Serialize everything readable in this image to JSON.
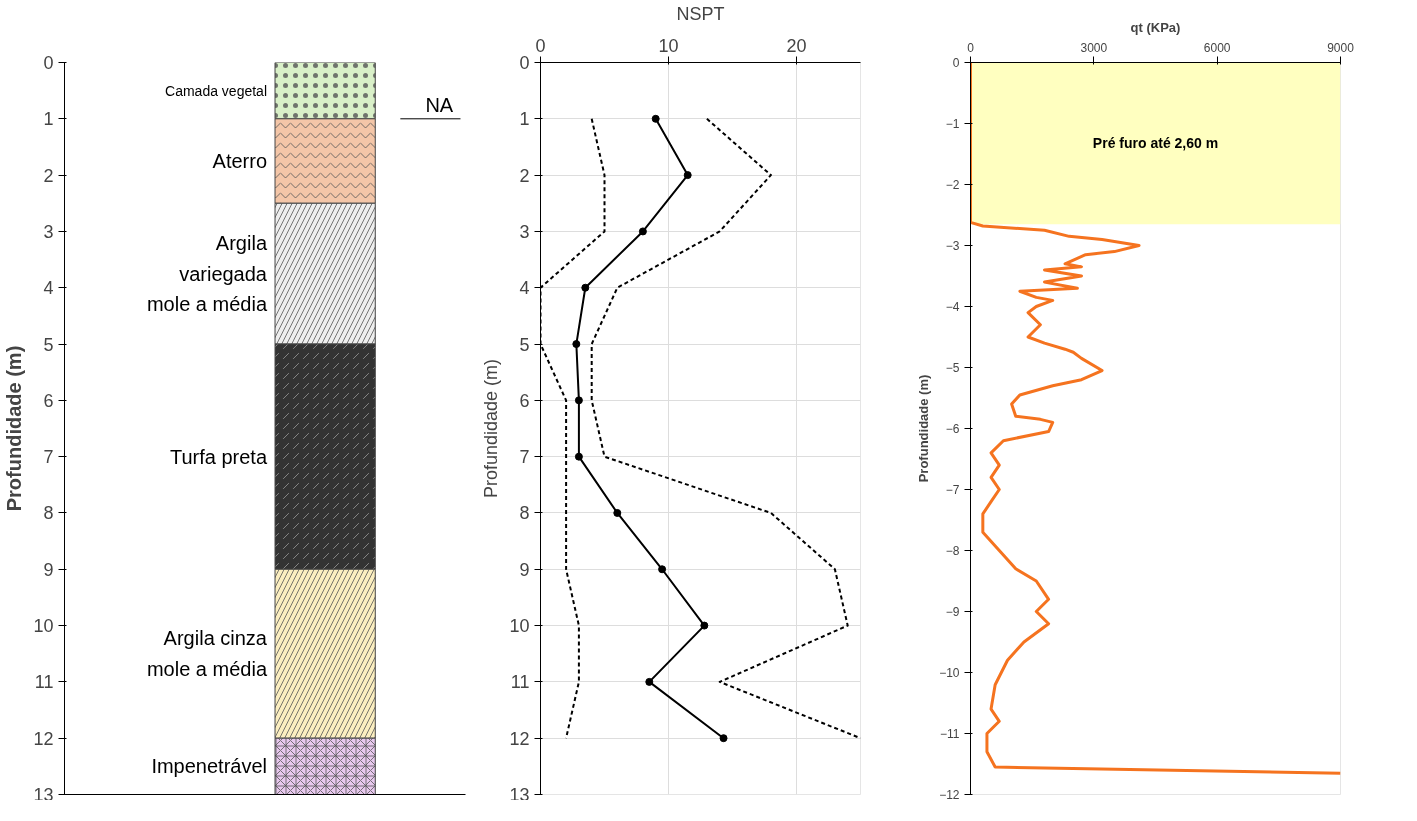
{
  "chart_data": [
    {
      "type": "bar",
      "stacked": true,
      "categories": [
        null
      ],
      "ylabel": "Profundidade (m)",
      "ylim": [
        13,
        0
      ],
      "yticks": [
        0,
        1,
        2,
        3,
        4,
        5,
        6,
        7,
        8,
        9,
        10,
        11,
        12,
        13
      ],
      "series": [
        {
          "name": "Camada vegetal",
          "color": "#d9f0c8",
          "values": [
            1
          ]
        },
        {
          "name": "Aterro",
          "color": "#f4c6a8",
          "values": [
            1.5
          ]
        },
        {
          "name": "Argila variegada mole a média",
          "color": "#eeeeee",
          "values": [
            2.5
          ]
        },
        {
          "name": "Turfa preta",
          "color": "#333333",
          "values": [
            4
          ]
        },
        {
          "name": "Argila cinza mole a média",
          "color": "#fbeec0",
          "values": [
            3
          ]
        },
        {
          "name": "Impenetrável",
          "color": "#e8c8ee",
          "values": [
            1
          ]
        }
      ],
      "ref_lines": [
        {
          "axis": "y",
          "value": 1,
          "label": "NA"
        }
      ]
    },
    {
      "type": "line",
      "xlabel": "NSPT",
      "ylabel": "Profundidade (m)",
      "xlim": [
        0,
        25
      ],
      "xticks": [
        0,
        10,
        20
      ],
      "ylim": [
        13,
        0
      ],
      "yticks": [
        0,
        1,
        2,
        3,
        4,
        5,
        6,
        7,
        8,
        9,
        10,
        11,
        12,
        13
      ],
      "grid": true,
      "series": [
        {
          "color": "#000000",
          "marker": "circle",
          "line_style": "solid",
          "x": [
            9,
            11.5,
            8,
            3.5,
            2.8,
            3,
            3,
            6,
            9.5,
            12.8,
            8.5,
            14.3
          ],
          "values": [
            1,
            2,
            3,
            4,
            5,
            6,
            7,
            8,
            9,
            10,
            11,
            12
          ]
        },
        {
          "color": "#000000",
          "marker": "none",
          "line_style": "dashed",
          "x": [
            4,
            5,
            5,
            0,
            0,
            2,
            2,
            2,
            2,
            3,
            3,
            2
          ],
          "values": [
            1,
            2,
            3,
            4,
            5,
            6,
            7,
            8,
            9,
            10,
            11,
            12
          ]
        },
        {
          "color": "#000000",
          "marker": "none",
          "line_style": "dashed",
          "x": [
            13,
            18,
            14,
            6,
            4,
            4,
            5,
            18,
            23,
            24,
            14,
            25
          ],
          "values": [
            1,
            2,
            3,
            4,
            5,
            6,
            7,
            8,
            9,
            10,
            11,
            12
          ]
        }
      ]
    },
    {
      "type": "line",
      "xlabel": "qt (KPa)",
      "ylabel": "Profundidade (m)",
      "xlim": [
        0,
        9000
      ],
      "xticks": [
        0,
        3000,
        6000,
        9000
      ],
      "ylim": [
        -12,
        0
      ],
      "yticks": [
        0,
        -1,
        -2,
        -3,
        -4,
        -5,
        -6,
        -7,
        -8,
        -9,
        -10,
        -11,
        -12
      ],
      "bands": [
        {
          "axis": "y",
          "from": 0,
          "to": -2.65,
          "label": "Pré furo até 2,60 m",
          "color": "#ffffc0"
        }
      ],
      "series": [
        {
          "color": "#f5731f",
          "x": [
            0,
            0,
            300,
            1800,
            2400,
            3200,
            4100,
            3500,
            2800,
            2300,
            2700,
            1800,
            2700,
            1800,
            2600,
            1200,
            1600,
            2000,
            1600,
            1400,
            1700,
            1400,
            1800,
            2300,
            2500,
            2700,
            3200,
            2700,
            2000,
            1200,
            1000,
            1100,
            1700,
            2000,
            1900,
            800,
            500,
            700,
            500,
            700,
            500,
            300,
            300,
            700,
            1100,
            1600,
            1900,
            1600,
            1900,
            1300,
            900,
            600,
            500,
            700,
            400,
            400,
            600,
            9000
          ],
          "values": [
            0,
            -2.62,
            -2.68,
            -2.75,
            -2.85,
            -2.9,
            -3.0,
            -3.1,
            -3.15,
            -3.3,
            -3.35,
            -3.4,
            -3.5,
            -3.6,
            -3.7,
            -3.75,
            -3.85,
            -3.9,
            -4.0,
            -4.1,
            -4.3,
            -4.5,
            -4.6,
            -4.7,
            -4.75,
            -4.85,
            -5.05,
            -5.2,
            -5.3,
            -5.45,
            -5.6,
            -5.8,
            -5.85,
            -5.9,
            -6.05,
            -6.2,
            -6.4,
            -6.6,
            -6.8,
            -7.0,
            -7.2,
            -7.4,
            -7.7,
            -8.0,
            -8.3,
            -8.5,
            -8.8,
            -9.0,
            -9.2,
            -9.5,
            -9.8,
            -10.2,
            -10.6,
            -10.8,
            -11.0,
            -11.3,
            -11.55,
            -11.65
          ]
        }
      ]
    }
  ]
}
